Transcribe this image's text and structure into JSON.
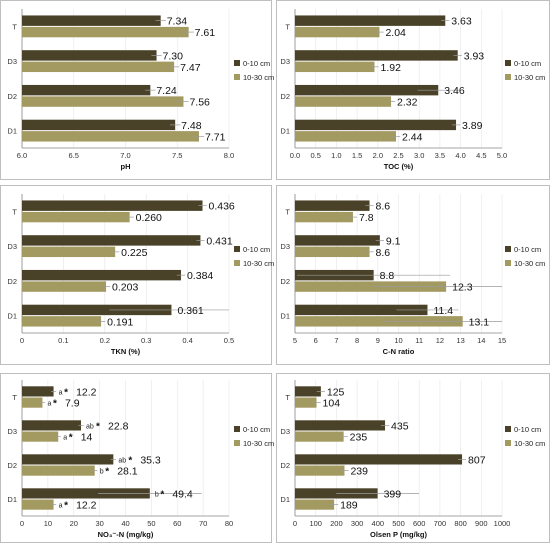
{
  "colors": {
    "series1": "#4a4228",
    "series2": "#a39a62",
    "error": "#9a9a9a",
    "frame": "#bfbfbf"
  },
  "chart_data": [
    {
      "type": "bar",
      "orientation": "horizontal",
      "categories": [
        "T",
        "D3",
        "D2",
        "D1"
      ],
      "series": [
        {
          "name": "0-10 cm",
          "values": [
            7.34,
            7.3,
            7.24,
            7.48
          ],
          "labels": [
            "7.34",
            "7.30",
            "7.24",
            "7.48"
          ],
          "errors": [
            0.05,
            0.05,
            0.05,
            0.05
          ]
        },
        {
          "name": "10-30 cm",
          "values": [
            7.61,
            7.47,
            7.56,
            7.71
          ],
          "labels": [
            "7.61",
            "7.47",
            "7.56",
            "7.71"
          ],
          "errors": [
            0.05,
            0.05,
            0.05,
            0.05
          ]
        }
      ],
      "xlabel": "pH",
      "xlim": [
        6.0,
        8.0
      ],
      "xticks": [
        "6.0",
        "6.5",
        "7.0",
        "7.5",
        "8.0"
      ]
    },
    {
      "type": "bar",
      "orientation": "horizontal",
      "categories": [
        "T",
        "D3",
        "D2",
        "D1"
      ],
      "series": [
        {
          "name": "0-10 cm",
          "values": [
            3.63,
            3.93,
            3.46,
            3.89
          ],
          "labels": [
            "3.63",
            "3.93",
            "3.46",
            "3.89"
          ],
          "errors": [
            0.1,
            0.1,
            0.5,
            0.1
          ]
        },
        {
          "name": "10-30 cm",
          "values": [
            2.04,
            1.92,
            2.32,
            2.44
          ],
          "labels": [
            "2.04",
            "1.92",
            "2.32",
            "2.44"
          ],
          "errors": [
            0.1,
            0.1,
            0.1,
            0.1
          ]
        }
      ],
      "xlabel": "TOC (%)",
      "xlim": [
        0.0,
        5.0
      ],
      "xticks": [
        "0.0",
        "0.5",
        "1.0",
        "1.5",
        "2.0",
        "2.5",
        "3.0",
        "3.5",
        "4.0",
        "4.5",
        "5.0"
      ]
    },
    {
      "type": "bar",
      "orientation": "horizontal",
      "categories": [
        "T",
        "D3",
        "D2",
        "D1"
      ],
      "series": [
        {
          "name": "0-10 cm",
          "values": [
            0.436,
            0.431,
            0.384,
            0.361
          ],
          "labels": [
            "0.436",
            "0.431",
            "0.384",
            "0.361"
          ],
          "errors": [
            0.01,
            0.01,
            0.01,
            0.15
          ]
        },
        {
          "name": "10-30 cm",
          "values": [
            0.26,
            0.225,
            0.203,
            0.191
          ],
          "labels": [
            "0.260",
            "0.225",
            "0.203",
            "0.191"
          ],
          "errors": [
            0.01,
            0.01,
            0.01,
            0.01
          ]
        }
      ],
      "xlabel": "TKN (%)",
      "xlim": [
        0,
        0.5
      ],
      "xticks": [
        "0",
        "0.1",
        "0.2",
        "0.3",
        "0.4",
        "0.5"
      ]
    },
    {
      "type": "bar",
      "orientation": "horizontal",
      "categories": [
        "T",
        "D3",
        "D2",
        "D1"
      ],
      "series": [
        {
          "name": "0-10 cm",
          "values": [
            8.6,
            9.1,
            8.8,
            11.4
          ],
          "labels": [
            "8.6",
            "9.1",
            "8.8",
            "11.4"
          ],
          "errors": [
            0.2,
            0.2,
            3.7,
            1.5
          ]
        },
        {
          "name": "10-30 cm",
          "values": [
            7.8,
            8.6,
            12.3,
            13.1
          ],
          "labels": [
            "7.8",
            "8.6",
            "12.3",
            "13.1"
          ],
          "errors": [
            0.2,
            0.2,
            3.5,
            3.8
          ]
        }
      ],
      "xlabel": "C-N ratio",
      "xlim": [
        5,
        15
      ],
      "xticks": [
        "5",
        "6",
        "7",
        "8",
        "9",
        "10",
        "11",
        "12",
        "13",
        "14",
        "15"
      ]
    },
    {
      "type": "bar",
      "orientation": "horizontal",
      "categories": [
        "T",
        "D3",
        "D2",
        "D1"
      ],
      "series": [
        {
          "name": "0-10 cm",
          "values": [
            12.2,
            22.8,
            35.3,
            49.4
          ],
          "labels": [
            "12.2",
            "22.8",
            "35.3",
            "49.4"
          ],
          "sig": [
            "a",
            "ab",
            "ab",
            "b"
          ],
          "errors": [
            1,
            1,
            1,
            20
          ]
        },
        {
          "name": "10-30 cm",
          "values": [
            7.9,
            14,
            28.1,
            12.2
          ],
          "labels": [
            "7.9",
            "14",
            "28.1",
            "12.2"
          ],
          "sig": [
            "a",
            "a",
            "b",
            "a"
          ],
          "errors": [
            1,
            1,
            1,
            1
          ]
        }
      ],
      "xlabel": "NO₃⁻-N (mg/kg)",
      "xlim": [
        0,
        80
      ],
      "xticks": [
        "0",
        "10",
        "20",
        "30",
        "40",
        "50",
        "60",
        "70",
        "80"
      ]
    },
    {
      "type": "bar",
      "orientation": "horizontal",
      "categories": [
        "T",
        "D3",
        "D2",
        "D1"
      ],
      "series": [
        {
          "name": "0-10 cm",
          "values": [
            125,
            435,
            807,
            399
          ],
          "labels": [
            "125",
            "435",
            "807",
            "399"
          ],
          "errors": [
            20,
            20,
            20,
            200
          ]
        },
        {
          "name": "10-30 cm",
          "values": [
            104,
            235,
            239,
            189
          ],
          "labels": [
            "104",
            "235",
            "239",
            "189"
          ],
          "errors": [
            20,
            20,
            20,
            20
          ]
        }
      ],
      "xlabel": "Olsen P (mg/kg)",
      "xlim": [
        0,
        1000
      ],
      "xticks": [
        "0",
        "100",
        "200",
        "300",
        "400",
        "500",
        "600",
        "700",
        "800",
        "900",
        "1000"
      ]
    }
  ]
}
